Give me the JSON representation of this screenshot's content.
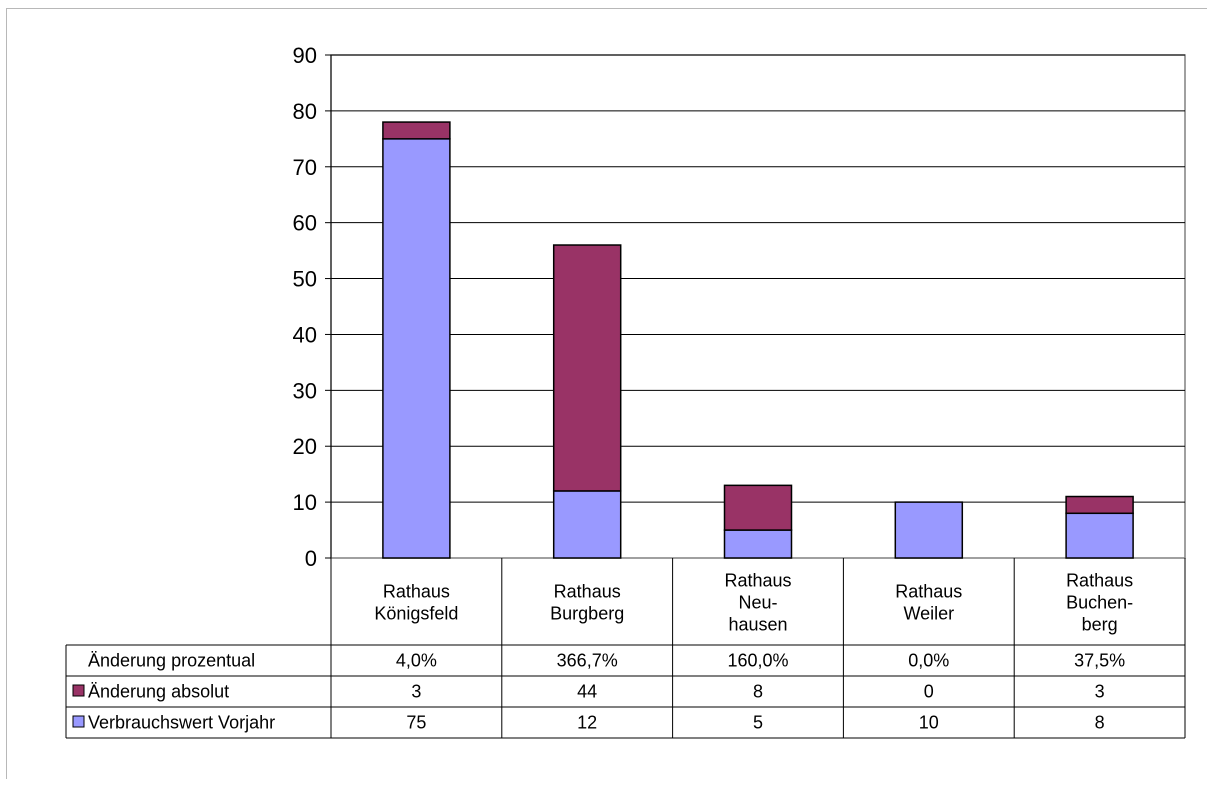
{
  "chart_data": {
    "type": "bar",
    "stacked": true,
    "categories": [
      [
        "Rathaus",
        "Königsfeld"
      ],
      [
        "Rathaus",
        "Burgberg"
      ],
      [
        "Rathaus",
        "Neu-",
        "hausen"
      ],
      [
        "Rathaus",
        "Weiler"
      ],
      [
        "Rathaus",
        "Buchen-",
        "berg"
      ]
    ],
    "series": [
      {
        "name": "Verbrauchswert Vorjahr",
        "values": [
          75,
          12,
          5,
          10,
          8
        ],
        "color": "#9999ff"
      },
      {
        "name": "Änderung absolut",
        "values": [
          3,
          44,
          8,
          0,
          3
        ],
        "color": "#993366"
      }
    ],
    "table_rows": [
      {
        "label": "Änderung prozentual",
        "values": [
          "4,0%",
          "366,7%",
          "160,0%",
          "0,0%",
          "37,5%"
        ],
        "marker": ""
      },
      {
        "label": "Änderung absolut",
        "values": [
          "3",
          "44",
          "8",
          "0",
          "3"
        ],
        "marker": "#993366"
      },
      {
        "label": "Verbrauchswert Vorjahr",
        "values": [
          "75",
          "12",
          "5",
          "10",
          "8"
        ],
        "marker": "#9999ff"
      }
    ],
    "ylim": [
      0,
      90
    ],
    "yticks": [
      0,
      10,
      20,
      30,
      40,
      50,
      60,
      70,
      80,
      90
    ],
    "grid": true,
    "legend": "data-table"
  }
}
